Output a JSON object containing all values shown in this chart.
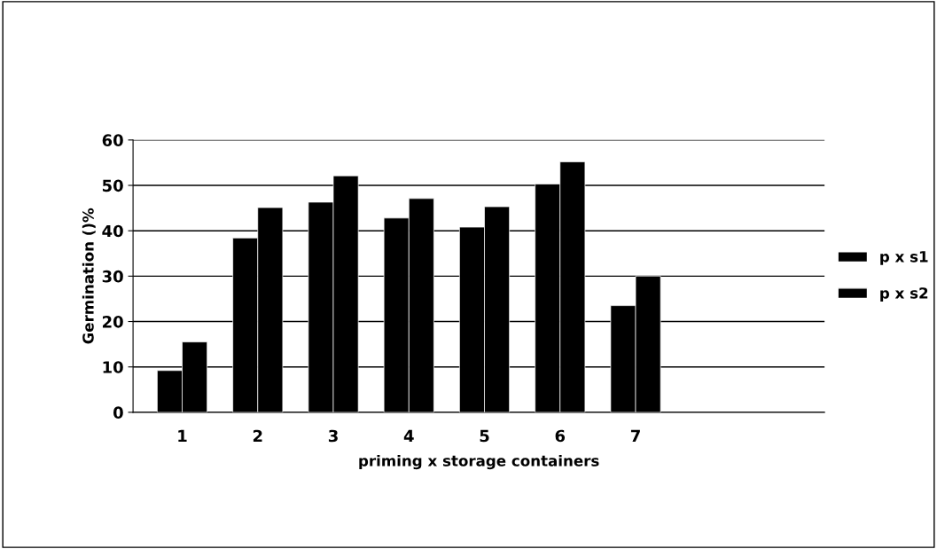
{
  "chart_data": {
    "type": "bar",
    "xlabel": "priming x storage containers",
    "ylabel": "Germination ()%",
    "categories": [
      "1",
      "2",
      "3",
      "4",
      "5",
      "6",
      "7"
    ],
    "series": [
      {
        "name": "p x s1",
        "color": "#000000",
        "values": [
          9.2,
          38.4,
          46.3,
          42.8,
          40.8,
          50.3,
          23.5
        ]
      },
      {
        "name": "p x s2",
        "color": "#000000",
        "values": [
          15.5,
          45.1,
          52.1,
          47.1,
          45.3,
          55.2,
          30.0
        ]
      }
    ],
    "ylim": [
      0,
      60
    ],
    "yticks": [
      0,
      10,
      20,
      30,
      40,
      50,
      60
    ],
    "grid": "y",
    "legend": "right"
  }
}
